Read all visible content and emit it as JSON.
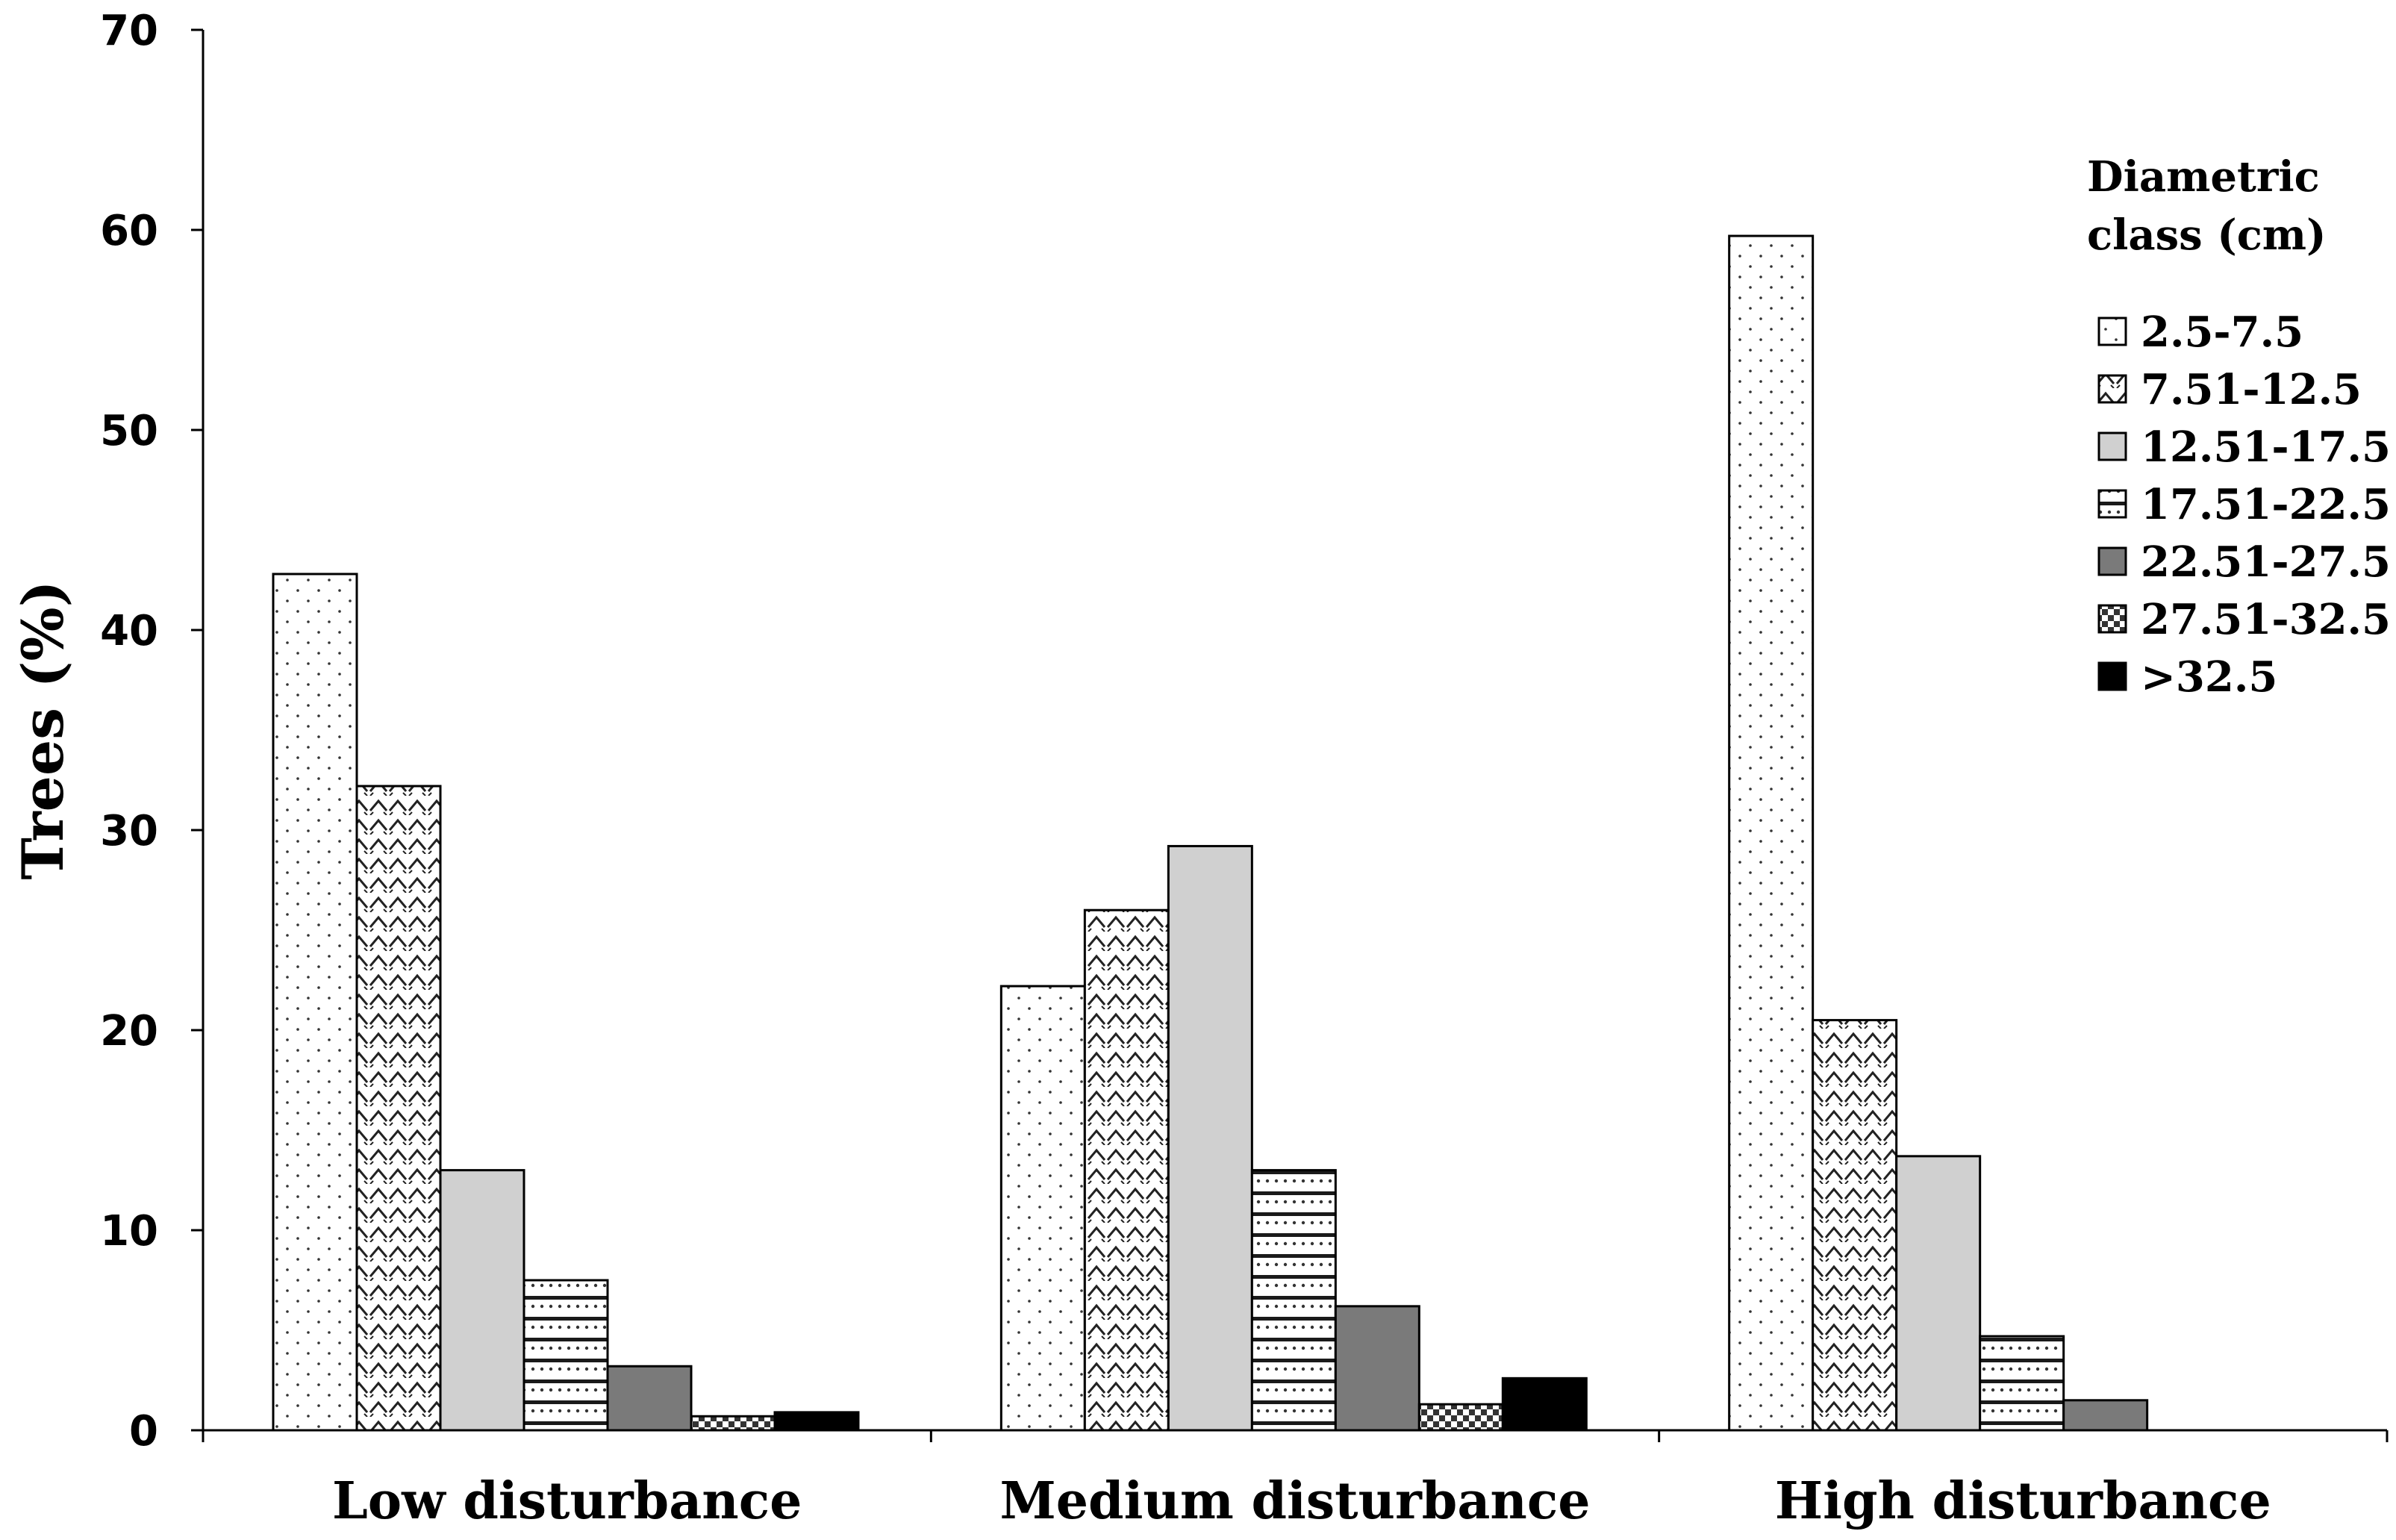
{
  "chart_data": {
    "type": "bar",
    "title": "",
    "xlabel": "",
    "ylabel": "Trees (%)",
    "ylim": [
      0,
      70
    ],
    "yticks": [
      0,
      10,
      20,
      30,
      40,
      50,
      60,
      70
    ],
    "grid": false,
    "legend_position": "top-right",
    "legend_title": "Diametric class (cm)",
    "legend_title_lines": [
      "Diametric",
      "class (cm)"
    ],
    "categories": [
      "Low disturbance",
      "Medium disturbance",
      "High disturbance"
    ],
    "series": [
      {
        "name": "2.5-7.5",
        "values": [
          42.8,
          22.2,
          59.7
        ],
        "pattern": "dots",
        "color": "#ffffff"
      },
      {
        "name": "7.51-12.5",
        "values": [
          32.2,
          26.0,
          20.5
        ],
        "pattern": "chevrons",
        "color": "#ffffff"
      },
      {
        "name": "12.51-17.5",
        "values": [
          13.0,
          29.2,
          13.7
        ],
        "pattern": "solid",
        "color": "#d0d0d0"
      },
      {
        "name": "17.51-22.5",
        "values": [
          7.5,
          13.0,
          4.7
        ],
        "pattern": "stripes",
        "color": "#ffffff"
      },
      {
        "name": "22.51-27.5",
        "values": [
          3.2,
          6.2,
          1.5
        ],
        "pattern": "solid",
        "color": "#7a7a7a"
      },
      {
        "name": "27.51-32.5",
        "values": [
          0.7,
          1.3,
          0
        ],
        "pattern": "checker",
        "color": "#ffffff"
      },
      {
        "name": ">32.5",
        "values": [
          0.9,
          2.6,
          0
        ],
        "pattern": "solid",
        "color": "#000000"
      }
    ]
  }
}
